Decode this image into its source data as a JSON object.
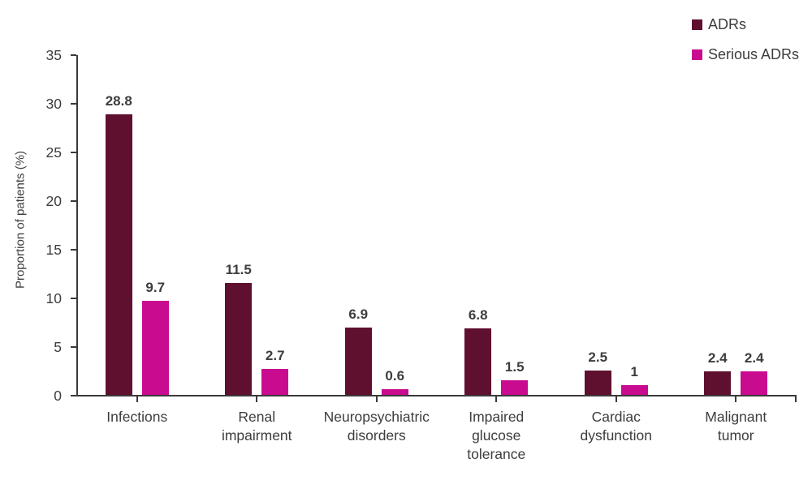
{
  "chart_data": {
    "type": "bar",
    "title": "",
    "ylabel": "Proportion of patients (%)",
    "ylim": [
      0,
      35
    ],
    "yticks": [
      0,
      5,
      10,
      15,
      20,
      25,
      30,
      35
    ],
    "grid": false,
    "legend_position": "top-right",
    "categories": [
      "Infections",
      "Renal impairment",
      "Neuropsychiatric disorders",
      "Impaired glucose tolerance",
      "Cardiac dysfunction",
      "Malignant tumor"
    ],
    "category_label_lines": [
      "Infections",
      "Renal\nimpairment",
      "Neuropsychiatric\ndisorders",
      "Impaired\nglucose\ntolerance",
      "Cardiac\ndysfunction",
      "Malignant tumor"
    ],
    "series": [
      {
        "name": "ADRs",
        "color": "#5F102F",
        "values": [
          28.8,
          11.5,
          6.9,
          6.8,
          2.5,
          2.4
        ],
        "labels": [
          "28.8",
          "11.5",
          "6.9",
          "6.8",
          "2.5",
          "2.4"
        ]
      },
      {
        "name": "Serious ADRs",
        "color": "#C90B8F",
        "values": [
          9.7,
          2.7,
          0.6,
          1.5,
          1,
          2.4
        ],
        "labels": [
          "9.7",
          "2.7",
          "0.6",
          "1.5",
          "1",
          "2.4"
        ]
      }
    ]
  },
  "colors": {
    "background": "#FFFFFF",
    "axis": "#3A3A3A",
    "text": "#3D3D3D",
    "adrs": "#5F102F",
    "serious_adrs": "#C90B8F"
  }
}
